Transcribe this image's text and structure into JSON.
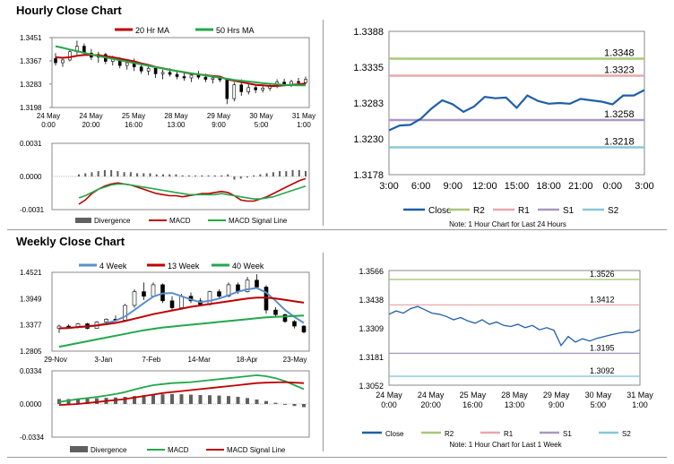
{
  "hourly": {
    "title": "Hourly Close Chart",
    "price": {
      "legend": [
        "20 Hr MA",
        "50 Hrs MA"
      ],
      "ma20_color": "#c00000",
      "ma50_color": "#22a84b",
      "y_ticks": [
        "1.3451",
        "1.3367",
        "1.3283",
        "1.3198"
      ],
      "x_ticks": [
        [
          "24 May",
          "0:00"
        ],
        [
          "24 May",
          "20:00"
        ],
        [
          "25 May",
          "16:00"
        ],
        [
          "28 May",
          "13:00"
        ],
        [
          "29 May",
          "9:00"
        ],
        [
          "30 May",
          "5:00"
        ],
        [
          "31 May",
          "1:00"
        ]
      ],
      "candles": [
        [
          1.3375,
          1.3395,
          1.335,
          1.336
        ],
        [
          1.336,
          1.338,
          1.3345,
          1.337
        ],
        [
          1.337,
          1.341,
          1.3365,
          1.34
        ],
        [
          1.34,
          1.344,
          1.339,
          1.342
        ],
        [
          1.342,
          1.343,
          1.3385,
          1.3395
        ],
        [
          1.3395,
          1.341,
          1.337,
          1.338
        ],
        [
          1.338,
          1.34,
          1.336,
          1.339
        ],
        [
          1.339,
          1.3395,
          1.3355,
          1.3365
        ],
        [
          1.3365,
          1.3385,
          1.335,
          1.3375
        ],
        [
          1.3375,
          1.338,
          1.334,
          1.335
        ],
        [
          1.335,
          1.337,
          1.3335,
          1.336
        ],
        [
          1.336,
          1.3375,
          1.333,
          1.3345
        ],
        [
          1.3345,
          1.3355,
          1.332,
          1.333
        ],
        [
          1.333,
          1.335,
          1.3315,
          1.334
        ],
        [
          1.334,
          1.3345,
          1.3305,
          1.332
        ],
        [
          1.332,
          1.3335,
          1.33,
          1.3325
        ],
        [
          1.3325,
          1.334,
          1.331,
          1.3318
        ],
        [
          1.3318,
          1.333,
          1.33,
          1.331
        ],
        [
          1.331,
          1.3325,
          1.3295,
          1.3305
        ],
        [
          1.3305,
          1.332,
          1.329,
          1.3315
        ],
        [
          1.3315,
          1.333,
          1.33,
          1.3308
        ],
        [
          1.3308,
          1.332,
          1.329,
          1.33
        ],
        [
          1.33,
          1.3315,
          1.3285,
          1.3305
        ],
        [
          1.3305,
          1.3312,
          1.329,
          1.3298
        ],
        [
          1.3298,
          1.3305,
          1.321,
          1.323
        ],
        [
          1.323,
          1.329,
          1.322,
          1.328
        ],
        [
          1.328,
          1.33,
          1.324,
          1.3255
        ],
        [
          1.3255,
          1.3285,
          1.3245,
          1.327
        ],
        [
          1.327,
          1.328,
          1.325,
          1.3262
        ],
        [
          1.3262,
          1.3278,
          1.3252,
          1.3268
        ],
        [
          1.3268,
          1.3285,
          1.3258,
          1.3275
        ],
        [
          1.3275,
          1.33,
          1.3268,
          1.329
        ],
        [
          1.329,
          1.3302,
          1.3275,
          1.3282
        ],
        [
          1.3282,
          1.3298,
          1.3272,
          1.3292
        ],
        [
          1.3292,
          1.3305,
          1.328,
          1.3288
        ],
        [
          1.3288,
          1.331,
          1.3282,
          1.33
        ]
      ],
      "ma20": [
        1.338,
        1.3378,
        1.338,
        1.3385,
        1.3388,
        1.3388,
        1.3387,
        1.3384,
        1.338,
        1.3375,
        1.337,
        1.3365,
        1.3358,
        1.3352,
        1.3345,
        1.334,
        1.3335,
        1.333,
        1.3325,
        1.332,
        1.3318,
        1.3315,
        1.3312,
        1.331,
        1.33,
        1.3295,
        1.329,
        1.3285,
        1.328,
        1.3278,
        1.3276,
        1.3276,
        1.3278,
        1.328,
        1.3282,
        1.3285
      ],
      "ma50": [
        1.342,
        1.3414,
        1.3408,
        1.3402,
        1.3396,
        1.339,
        1.3384,
        1.3379,
        1.3374,
        1.3369,
        1.3364,
        1.3359,
        1.3354,
        1.3349,
        1.3344,
        1.3339,
        1.3334,
        1.333,
        1.3326,
        1.3322,
        1.3318,
        1.3314,
        1.331,
        1.3306,
        1.3302,
        1.3298,
        1.3295,
        1.3292,
        1.3289,
        1.3286,
        1.3284,
        1.3282,
        1.328,
        1.3279,
        1.3278,
        1.3278
      ],
      "ylim": [
        1.3198,
        1.3451
      ]
    },
    "macd": {
      "legend": [
        "Divergence",
        "MACD",
        "MACD Signal Line"
      ],
      "y_ticks": [
        "0.0031",
        "0.0000",
        "-0.0031"
      ],
      "divergence": [
        0.0002,
        0.0003,
        0.0004,
        0.0005,
        0.0006,
        0.0006,
        0.0005,
        0.0004,
        0.0004,
        0.0003,
        0.0003,
        0.0003,
        0.0002,
        0.0002,
        0.0002,
        0.0002,
        0.0001,
        0.0001,
        0.0001,
        0.0001,
        0.0001,
        0.0001,
        0.0001,
        0.0002,
        -0.0003,
        -0.0002,
        -0.0001,
        0.0001,
        0.0002,
        0.0003,
        0.0004,
        0.0005,
        0.0005,
        0.0006,
        0.0006,
        0.0005
      ],
      "macd": [
        -0.0026,
        -0.0022,
        -0.0016,
        -0.0012,
        -0.0009,
        -0.0007,
        -0.0006,
        -0.0007,
        -0.0008,
        -0.001,
        -0.0012,
        -0.0014,
        -0.0016,
        -0.0017,
        -0.0018,
        -0.0018,
        -0.0019,
        -0.0018,
        -0.0017,
        -0.0016,
        -0.0016,
        -0.0015,
        -0.0014,
        -0.0015,
        -0.0018,
        -0.0022,
        -0.0023,
        -0.0023,
        -0.0021,
        -0.0019,
        -0.0016,
        -0.0013,
        -0.001,
        -0.0007,
        -0.0004,
        -0.0002
      ],
      "signal": [
        -0.002,
        -0.0018,
        -0.0015,
        -0.0012,
        -0.001,
        -0.0008,
        -0.0007,
        -0.0007,
        -0.0008,
        -0.0009,
        -0.001,
        -0.0011,
        -0.0012,
        -0.0013,
        -0.0014,
        -0.0015,
        -0.0016,
        -0.0017,
        -0.0017,
        -0.0017,
        -0.0017,
        -0.0017,
        -0.0016,
        -0.0017,
        -0.0018,
        -0.0019,
        -0.002,
        -0.0021,
        -0.0021,
        -0.002,
        -0.0019,
        -0.0017,
        -0.0015,
        -0.0013,
        -0.0011,
        -0.0009
      ],
      "ylim": [
        -0.0031,
        0.0031
      ]
    },
    "close24": {
      "y_ticks": [
        "1.3388",
        "1.3335",
        "1.3283",
        "1.3230",
        "1.3178"
      ],
      "x_ticks": [
        "3:00",
        "6:00",
        "9:00",
        "12:00",
        "15:00",
        "18:00",
        "21:00",
        "0:00",
        "3:00"
      ],
      "close": [
        1.3243,
        1.325,
        1.3251,
        1.326,
        1.3275,
        1.3287,
        1.3281,
        1.327,
        1.3278,
        1.3292,
        1.329,
        1.3291,
        1.3276,
        1.3294,
        1.3286,
        1.3282,
        1.3283,
        1.3282,
        1.3289,
        1.3287,
        1.3285,
        1.3281,
        1.3294,
        1.3294,
        1.3302
      ],
      "levels": [
        {
          "name": "R2",
          "value": 1.3348,
          "label": "1.3348",
          "color": "#a8c878"
        },
        {
          "name": "R1",
          "value": 1.3323,
          "label": "1.3323",
          "color": "#e8a8a8"
        },
        {
          "name": "S1",
          "value": 1.3258,
          "label": "1.3258",
          "color": "#a898c0"
        },
        {
          "name": "S2",
          "value": 1.3218,
          "label": "1.3218",
          "color": "#88c8d8"
        }
      ],
      "legend": [
        "Close",
        "R2",
        "R1",
        "S1",
        "S2"
      ],
      "note": "Note: 1 Hour Chart for Last 24 Hours",
      "close_color": "#1f5fa8",
      "ylim": [
        1.3178,
        1.3388
      ]
    }
  },
  "weekly": {
    "title": "Weekly Close Chart",
    "price": {
      "legend": [
        "4 Week",
        "13 Week",
        "40 Week"
      ],
      "ma4_color": "#5b8ecb",
      "ma13_color": "#c00000",
      "ma40_color": "#22a84b",
      "y_ticks": [
        "1.4521",
        "1.3949",
        "1.3377",
        "1.2805"
      ],
      "x_ticks": [
        "29-Nov",
        "3-Jan",
        "7-Feb",
        "14-Mar",
        "18-Apr",
        "23-May"
      ],
      "candles": [
        [
          1.33,
          1.338,
          1.32,
          1.335
        ],
        [
          1.335,
          1.339,
          1.329,
          1.332
        ],
        [
          1.332,
          1.342,
          1.33,
          1.34
        ],
        [
          1.34,
          1.342,
          1.328,
          1.33
        ],
        [
          1.33,
          1.346,
          1.329,
          1.344
        ],
        [
          1.344,
          1.352,
          1.342,
          1.35
        ],
        [
          1.35,
          1.358,
          1.345,
          1.348
        ],
        [
          1.348,
          1.383,
          1.346,
          1.38
        ],
        [
          1.38,
          1.415,
          1.375,
          1.41
        ],
        [
          1.41,
          1.43,
          1.392,
          1.4
        ],
        [
          1.4,
          1.43,
          1.398,
          1.425
        ],
        [
          1.425,
          1.428,
          1.385,
          1.39
        ],
        [
          1.39,
          1.4,
          1.37,
          1.375
        ],
        [
          1.375,
          1.405,
          1.372,
          1.4
        ],
        [
          1.4,
          1.408,
          1.385,
          1.39
        ],
        [
          1.39,
          1.396,
          1.378,
          1.382
        ],
        [
          1.382,
          1.412,
          1.38,
          1.41
        ],
        [
          1.41,
          1.415,
          1.395,
          1.4
        ],
        [
          1.4,
          1.43,
          1.398,
          1.425
        ],
        [
          1.425,
          1.43,
          1.405,
          1.41
        ],
        [
          1.41,
          1.442,
          1.408,
          1.435
        ],
        [
          1.435,
          1.448,
          1.418,
          1.42
        ],
        [
          1.42,
          1.424,
          1.362,
          1.37
        ],
        [
          1.37,
          1.376,
          1.354,
          1.36
        ],
        [
          1.36,
          1.362,
          1.342,
          1.345
        ],
        [
          1.345,
          1.348,
          1.33,
          1.335
        ],
        [
          1.335,
          1.337,
          1.319,
          1.322
        ]
      ],
      "ma4": [
        1.33,
        1.331,
        1.333,
        1.334,
        1.336,
        1.341,
        1.347,
        1.356,
        1.37,
        1.385,
        1.399,
        1.406,
        1.407,
        1.4,
        1.393,
        1.387,
        1.39,
        1.395,
        1.402,
        1.41,
        1.415,
        1.418,
        1.408,
        1.39,
        1.37,
        1.355,
        1.342
      ],
      "ma13": [
        1.33,
        1.331,
        1.333,
        1.3345,
        1.3365,
        1.339,
        1.342,
        1.346,
        1.351,
        1.356,
        1.361,
        1.365,
        1.369,
        1.373,
        1.377,
        1.38,
        1.383,
        1.386,
        1.389,
        1.392,
        1.395,
        1.397,
        1.397,
        1.395,
        1.392,
        1.389,
        1.386
      ],
      "ma40": [
        1.29,
        1.294,
        1.298,
        1.302,
        1.306,
        1.31,
        1.314,
        1.318,
        1.322,
        1.326,
        1.329,
        1.332,
        1.334,
        1.336,
        1.338,
        1.34,
        1.342,
        1.344,
        1.346,
        1.348,
        1.35,
        1.352,
        1.354,
        1.355,
        1.356,
        1.357,
        1.358
      ],
      "ylim": [
        1.2805,
        1.4521
      ]
    },
    "macd": {
      "legend": [
        "Divergence",
        "MACD",
        "MACD Signal Line"
      ],
      "y_ticks": [
        "0.0334",
        "0.0000",
        "-0.0334"
      ],
      "divergence": [
        0.005,
        0.005,
        0.0052,
        0.0055,
        0.0058,
        0.0062,
        0.0066,
        0.0072,
        0.008,
        0.0088,
        0.0094,
        0.0098,
        0.01,
        0.0098,
        0.0094,
        0.009,
        0.0088,
        0.0085,
        0.008,
        0.0072,
        0.006,
        0.0045,
        0.003,
        0.0012,
        -0.0008,
        -0.002,
        -0.0032
      ],
      "macd": [
        0.002,
        0.0035,
        0.005,
        0.006,
        0.007,
        0.0085,
        0.01,
        0.012,
        0.0145,
        0.017,
        0.019,
        0.02,
        0.021,
        0.0215,
        0.022,
        0.023,
        0.024,
        0.025,
        0.026,
        0.027,
        0.028,
        0.029,
        0.028,
        0.026,
        0.023,
        0.019,
        0.015
      ],
      "signal": [
        -0.001,
        -0.0005,
        0.0,
        0.001,
        0.002,
        0.003,
        0.004,
        0.005,
        0.0065,
        0.008,
        0.0095,
        0.011,
        0.012,
        0.013,
        0.014,
        0.015,
        0.016,
        0.017,
        0.018,
        0.019,
        0.02,
        0.021,
        0.0215,
        0.0218,
        0.022,
        0.0215,
        0.021
      ],
      "ylim": [
        -0.0334,
        0.0334
      ]
    },
    "close1w": {
      "y_ticks": [
        "1.3566",
        "1.3438",
        "1.3309",
        "1.3181",
        "1.3052"
      ],
      "x_ticks": [
        [
          "24 May",
          "0:00"
        ],
        [
          "24 May",
          "20:00"
        ],
        [
          "25 May",
          "16:00"
        ],
        [
          "28 May",
          "13:00"
        ],
        [
          "29 May",
          "9:00"
        ],
        [
          "30 May",
          "5:00"
        ],
        [
          "31 May",
          "1:00"
        ]
      ],
      "close": [
        1.337,
        1.3385,
        1.3375,
        1.3395,
        1.3405,
        1.339,
        1.3375,
        1.337,
        1.336,
        1.3345,
        1.3355,
        1.334,
        1.333,
        1.3345,
        1.3325,
        1.3335,
        1.332,
        1.3315,
        1.3325,
        1.331,
        1.332,
        1.33,
        1.331,
        1.3298,
        1.323,
        1.327,
        1.3245,
        1.326,
        1.325,
        1.3262,
        1.327,
        1.3278,
        1.3285,
        1.329,
        1.3288,
        1.33
      ],
      "levels": [
        {
          "name": "R2",
          "value": 1.3526,
          "label": "1.3526",
          "color": "#a8c878"
        },
        {
          "name": "R1",
          "value": 1.3412,
          "label": "1.3412",
          "color": "#e8a8a8"
        },
        {
          "name": "S1",
          "value": 1.3195,
          "label": "1.3195",
          "color": "#a898c0"
        },
        {
          "name": "S2",
          "value": 1.3092,
          "label": "1.3092",
          "color": "#88c8d8"
        }
      ],
      "legend": [
        "Close",
        "R2",
        "R1",
        "S1",
        "S2"
      ],
      "note": "Note: 1 Hour Chart for Last 1 Week",
      "close_color": "#1f5fa8",
      "ylim": [
        1.3052,
        1.3566
      ]
    }
  },
  "chart_data": [
    {
      "type": "line",
      "title": "Hourly Close Chart",
      "series": [
        {
          "name": "20 Hr MA"
        },
        {
          "name": "50 Hrs MA"
        }
      ],
      "ylim": [
        1.3198,
        1.3451
      ]
    },
    {
      "type": "line",
      "series": [
        {
          "name": "MACD"
        },
        {
          "name": "MACD Signal Line"
        },
        {
          "name": "Divergence"
        }
      ],
      "ylim": [
        -0.0031,
        0.0031
      ]
    },
    {
      "type": "line",
      "series": [
        {
          "name": "Close"
        },
        {
          "name": "R2",
          "values": [
            1.3348
          ]
        },
        {
          "name": "R1",
          "values": [
            1.3323
          ]
        },
        {
          "name": "S1",
          "values": [
            1.3258
          ]
        },
        {
          "name": "S2",
          "values": [
            1.3218
          ]
        }
      ],
      "ylim": [
        1.3178,
        1.3388
      ]
    },
    {
      "type": "line",
      "title": "Weekly Close Chart",
      "series": [
        {
          "name": "4 Week"
        },
        {
          "name": "13 Week"
        },
        {
          "name": "40 Week"
        }
      ],
      "ylim": [
        1.2805,
        1.4521
      ]
    },
    {
      "type": "line",
      "series": [
        {
          "name": "MACD"
        },
        {
          "name": "MACD Signal Line"
        },
        {
          "name": "Divergence"
        }
      ],
      "ylim": [
        -0.0334,
        0.0334
      ]
    },
    {
      "type": "line",
      "series": [
        {
          "name": "Close"
        },
        {
          "name": "R2",
          "values": [
            1.3526
          ]
        },
        {
          "name": "R1",
          "values": [
            1.3412
          ]
        },
        {
          "name": "S1",
          "values": [
            1.3195
          ]
        },
        {
          "name": "S2",
          "values": [
            1.3092
          ]
        }
      ],
      "ylim": [
        1.3052,
        1.3566
      ]
    }
  ]
}
